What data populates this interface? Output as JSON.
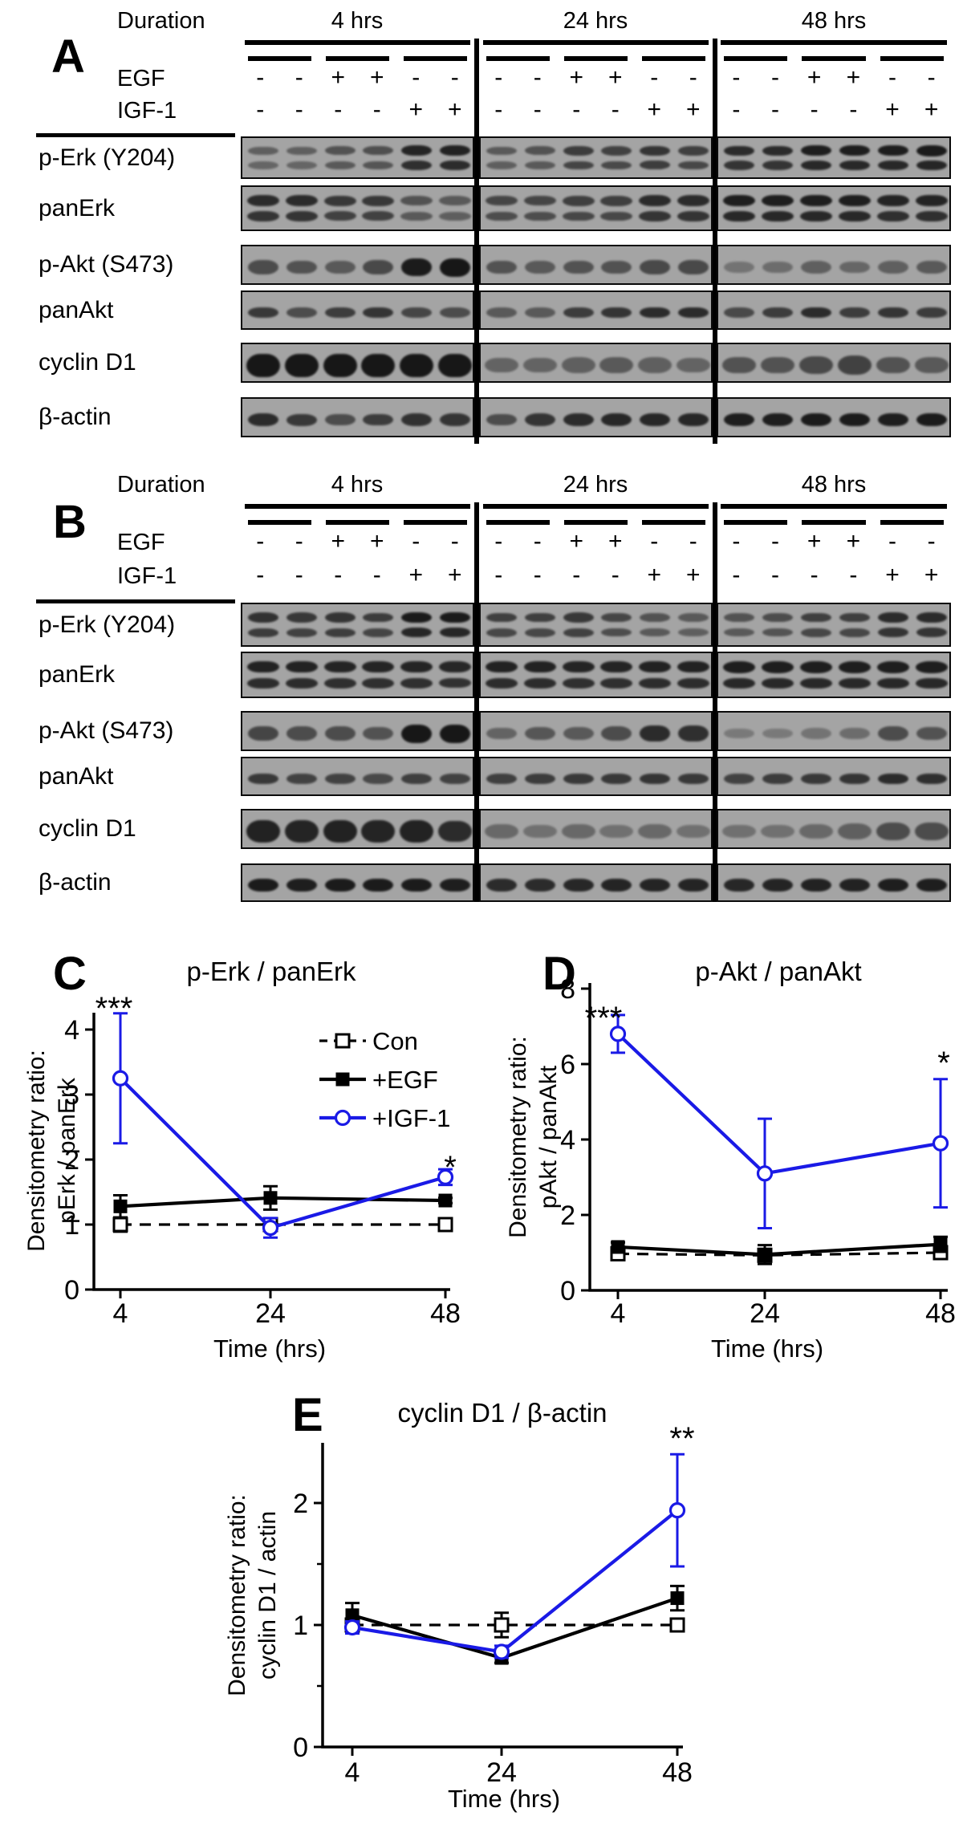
{
  "figure": {
    "panel_letters": [
      "A",
      "B",
      "C",
      "D",
      "E"
    ]
  },
  "blot_common": {
    "duration_label": "Duration",
    "time_labels": [
      "4 hrs",
      "24 hrs",
      "48 hrs"
    ],
    "egf_label": "EGF",
    "igf_label": "IGF-1",
    "egf_signs": [
      "-",
      "-",
      "+",
      "+",
      "-",
      "-"
    ],
    "igf_signs": [
      "-",
      "-",
      "-",
      "-",
      "+",
      "+"
    ],
    "rows": [
      {
        "label": "p-Erk (Y204)",
        "band_pattern": "doublet"
      },
      {
        "label": "panErk",
        "band_pattern": "doublet"
      },
      {
        "label": "p-Akt (S473)",
        "band_pattern": "single"
      },
      {
        "label": "panAkt",
        "band_pattern": "single"
      },
      {
        "label": "cyclin D1",
        "band_pattern": "single"
      },
      {
        "label": "β-actin",
        "band_pattern": "single"
      }
    ]
  },
  "blot_panels": [
    {
      "label": "A",
      "row_intensities": [
        [
          [
            0.45,
            0.45,
            0.55,
            0.58,
            0.9,
            0.92
          ],
          [
            0.5,
            0.55,
            0.72,
            0.68,
            0.78,
            0.7
          ],
          [
            0.85,
            0.85,
            0.95,
            0.95,
            0.95,
            0.97
          ]
        ],
        [
          [
            0.85,
            0.85,
            0.75,
            0.75,
            0.55,
            0.5
          ],
          [
            0.65,
            0.65,
            0.7,
            0.7,
            0.85,
            0.85
          ],
          [
            0.95,
            0.95,
            0.95,
            0.95,
            0.9,
            0.9
          ]
        ],
        [
          [
            0.6,
            0.55,
            0.5,
            0.62,
            0.97,
            1.0
          ],
          [
            0.55,
            0.5,
            0.55,
            0.55,
            0.62,
            0.62
          ],
          [
            0.3,
            0.35,
            0.45,
            0.4,
            0.45,
            0.5
          ]
        ],
        [
          [
            0.75,
            0.6,
            0.72,
            0.78,
            0.65,
            0.6
          ],
          [
            0.5,
            0.5,
            0.72,
            0.78,
            0.85,
            0.85
          ],
          [
            0.62,
            0.72,
            0.85,
            0.72,
            0.78,
            0.72
          ]
        ],
        [
          [
            1.0,
            1.0,
            1.0,
            1.0,
            1.0,
            1.0
          ],
          [
            0.42,
            0.42,
            0.45,
            0.5,
            0.45,
            0.42
          ],
          [
            0.55,
            0.55,
            0.62,
            0.68,
            0.55,
            0.5
          ]
        ],
        [
          [
            0.85,
            0.75,
            0.6,
            0.72,
            0.8,
            0.78
          ],
          [
            0.6,
            0.78,
            0.85,
            0.88,
            0.88,
            0.88
          ],
          [
            0.95,
            0.95,
            0.97,
            0.97,
            0.95,
            0.97
          ]
        ]
      ]
    },
    {
      "label": "B",
      "row_intensities": [
        [
          [
            0.8,
            0.75,
            0.78,
            0.72,
            0.97,
            0.97
          ],
          [
            0.7,
            0.7,
            0.75,
            0.65,
            0.55,
            0.5
          ],
          [
            0.55,
            0.6,
            0.7,
            0.7,
            0.85,
            0.85
          ]
        ],
        [
          [
            0.92,
            0.92,
            0.9,
            0.9,
            0.9,
            0.88
          ],
          [
            0.92,
            0.92,
            0.9,
            0.9,
            0.92,
            0.92
          ],
          [
            0.95,
            0.95,
            0.95,
            0.95,
            0.95,
            0.95
          ]
        ],
        [
          [
            0.65,
            0.6,
            0.6,
            0.55,
            1.0,
            1.0
          ],
          [
            0.42,
            0.52,
            0.5,
            0.6,
            0.85,
            0.82
          ],
          [
            0.25,
            0.25,
            0.3,
            0.35,
            0.6,
            0.55
          ]
        ],
        [
          [
            0.75,
            0.68,
            0.68,
            0.62,
            0.7,
            0.68
          ],
          [
            0.7,
            0.72,
            0.75,
            0.75,
            0.78,
            0.75
          ],
          [
            0.68,
            0.72,
            0.75,
            0.78,
            0.85,
            0.82
          ]
        ],
        [
          [
            0.92,
            0.9,
            0.92,
            0.9,
            0.92,
            0.85
          ],
          [
            0.38,
            0.32,
            0.38,
            0.32,
            0.38,
            0.32
          ],
          [
            0.32,
            0.32,
            0.38,
            0.45,
            0.6,
            0.6
          ]
        ],
        [
          [
            0.97,
            0.95,
            0.97,
            0.97,
            0.97,
            0.95
          ],
          [
            0.85,
            0.85,
            0.88,
            0.9,
            0.9,
            0.9
          ],
          [
            0.88,
            0.9,
            0.92,
            0.92,
            0.95,
            0.95
          ]
        ]
      ]
    }
  ],
  "chart_data": [
    {
      "panel": "C",
      "type": "line",
      "title": "p-Erk / panErk",
      "ylabel_line1": "Densitometry ratio:",
      "ylabel_line2": "pErk / panErk",
      "xlabel": "Time (hrs)",
      "x": [
        4,
        24,
        48
      ],
      "yticks": [
        0,
        1,
        2,
        3,
        4
      ],
      "ylim": [
        0,
        4.3
      ],
      "grid": false,
      "legend_position": "top-right-inside",
      "series": [
        {
          "name": "Con",
          "values": [
            1.0,
            1.0,
            1.0
          ],
          "err": [
            0.11,
            0.08,
            0.04
          ],
          "marker": "open-square",
          "line": "dashed",
          "color": "#000000"
        },
        {
          "name": "+EGF",
          "values": [
            1.28,
            1.41,
            1.37
          ],
          "err": [
            0.17,
            0.18,
            0.04
          ],
          "marker": "filled-square",
          "line": "solid",
          "color": "#000000"
        },
        {
          "name": "+IGF-1",
          "values": [
            3.25,
            0.95,
            1.73
          ],
          "err": [
            1.0,
            0.15,
            0.12
          ],
          "marker": "open-circle",
          "line": "solid",
          "color": "#1a1ae6"
        }
      ],
      "annotations": [
        {
          "text": "***",
          "time": 4,
          "series": "+IGF-1"
        },
        {
          "text": "*",
          "time": 48,
          "series": "+IGF-1"
        }
      ],
      "legend": {
        "show": true,
        "entries": [
          "Con",
          "+EGF",
          "+IGF-1"
        ]
      }
    },
    {
      "panel": "D",
      "type": "line",
      "title": "p-Akt / panAkt",
      "ylabel_line1": "Densitometry ratio:",
      "ylabel_line2": "pAkt / panAkt",
      "xlabel": "Time (hrs)",
      "x": [
        4,
        24,
        48
      ],
      "yticks": [
        0,
        2,
        4,
        6,
        8
      ],
      "ylim": [
        0,
        8.15
      ],
      "grid": false,
      "series": [
        {
          "name": "Con",
          "values": [
            0.97,
            0.93,
            1.0
          ],
          "err": [
            0.08,
            0.1,
            0.08
          ],
          "marker": "open-square",
          "line": "dashed",
          "color": "#000000"
        },
        {
          "name": "+EGF",
          "values": [
            1.15,
            0.95,
            1.22
          ],
          "err": [
            0.12,
            0.25,
            0.2
          ],
          "marker": "filled-square",
          "line": "solid",
          "color": "#000000"
        },
        {
          "name": "+IGF-1",
          "values": [
            6.8,
            3.1,
            3.9
          ],
          "err": [
            0.5,
            1.45,
            1.7
          ],
          "marker": "open-circle",
          "line": "solid",
          "color": "#1a1ae6"
        }
      ],
      "annotations": [
        {
          "text": "***",
          "time": 4,
          "series": "+IGF-1"
        },
        {
          "text": "*",
          "time": 48,
          "series": "+IGF-1"
        }
      ],
      "legend": {
        "show": false
      }
    },
    {
      "panel": "E",
      "type": "line",
      "title": "cyclin D1 / β-actin",
      "ylabel_line1": "Densitometry ratio:",
      "ylabel_line2": "cyclin D1 / actin",
      "xlabel": "Time (hrs)",
      "x": [
        4,
        24,
        48
      ],
      "yticks": [
        0,
        1,
        2
      ],
      "yticks_minor": [
        0.5,
        1.5
      ],
      "ylim": [
        0,
        2.5
      ],
      "grid": false,
      "series": [
        {
          "name": "Con",
          "values": [
            1.0,
            1.0,
            1.0
          ],
          "err": [
            0.04,
            0.1,
            0.03
          ],
          "marker": "open-square",
          "line": "dashed",
          "color": "#000000"
        },
        {
          "name": "+EGF",
          "values": [
            1.08,
            0.73,
            1.22
          ],
          "err": [
            0.1,
            0.04,
            0.1
          ],
          "marker": "filled-square",
          "line": "solid",
          "color": "#000000"
        },
        {
          "name": "+IGF-1",
          "values": [
            0.98,
            0.78,
            1.94
          ],
          "err": [
            0.05,
            0.05,
            0.46
          ],
          "marker": "open-circle",
          "line": "solid",
          "color": "#1a1ae6"
        }
      ],
      "annotations": [
        {
          "text": "**",
          "time": 48,
          "series": "+IGF-1"
        }
      ],
      "legend": {
        "show": false
      }
    }
  ]
}
